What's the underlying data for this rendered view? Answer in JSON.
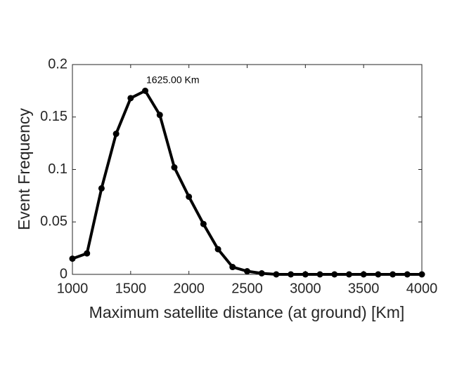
{
  "chart_data": {
    "type": "line",
    "x_label": "Maximum satellite distance (at ground) [Km]",
    "y_label": "Event Frequency",
    "annotation": "1625.00 Km",
    "x": [
      1000,
      1125,
      1250,
      1375,
      1500,
      1625,
      1750,
      1875,
      2000,
      2125,
      2250,
      2375,
      2500,
      2625,
      2750,
      2875,
      3000,
      3125,
      3250,
      3375,
      3500,
      3625,
      3750,
      3875,
      4000
    ],
    "series": [
      {
        "color": "#000000",
        "values": [
          0.015,
          0.02,
          0.082,
          0.134,
          0.168,
          0.175,
          0.152,
          0.102,
          0.074,
          0.048,
          0.024,
          0.007,
          0.003,
          0.001,
          0,
          0,
          0,
          0,
          0,
          0,
          0,
          0,
          0,
          0,
          0
        ]
      }
    ],
    "xlim": [
      1000,
      4000
    ],
    "xticks": [
      1000,
      1500,
      2000,
      2500,
      3000,
      3500,
      4000
    ],
    "ylim": [
      0,
      0.2
    ],
    "yticks": [
      0,
      0.05,
      0.1,
      0.15,
      0.2
    ],
    "grid": false
  }
}
